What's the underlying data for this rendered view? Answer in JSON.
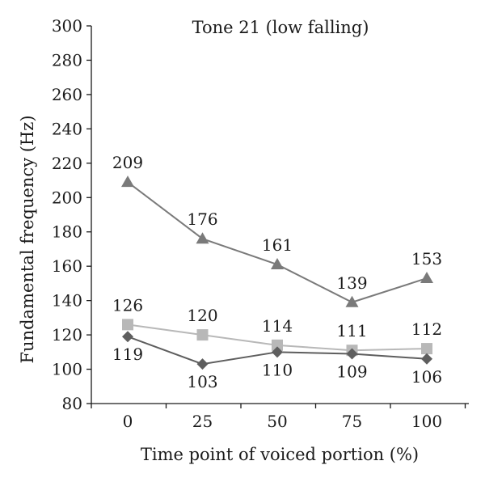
{
  "chart_data": {
    "type": "line",
    "title": "Tone 21 (low falling)",
    "xlabel": "Time point of voiced portion (%)",
    "ylabel": "Fundamental frequency (Hz)",
    "categories": [
      "0",
      "25",
      "50",
      "75",
      "100"
    ],
    "ylim": [
      80,
      300
    ],
    "yticks": [
      80,
      100,
      120,
      140,
      160,
      180,
      200,
      220,
      240,
      260,
      280,
      300
    ],
    "grid": false,
    "legend": "none",
    "series": [
      {
        "marker": "triangle",
        "color": "#7a7a7a",
        "label_position": "above",
        "values": [
          209,
          176,
          161,
          139,
          153
        ],
        "labels": [
          "209",
          "176",
          "161",
          "139",
          "153"
        ]
      },
      {
        "marker": "square",
        "color": "#b8b8b8",
        "label_position": "above",
        "values": [
          126,
          120,
          114,
          111,
          112
        ],
        "labels": [
          "126",
          "120",
          "114",
          "111",
          "112"
        ]
      },
      {
        "marker": "diamond",
        "color": "#5e5e5e",
        "label_position": "below",
        "values": [
          119,
          103,
          110,
          109,
          106
        ],
        "labels": [
          "119",
          "103",
          "110",
          "109",
          "106"
        ]
      }
    ]
  }
}
